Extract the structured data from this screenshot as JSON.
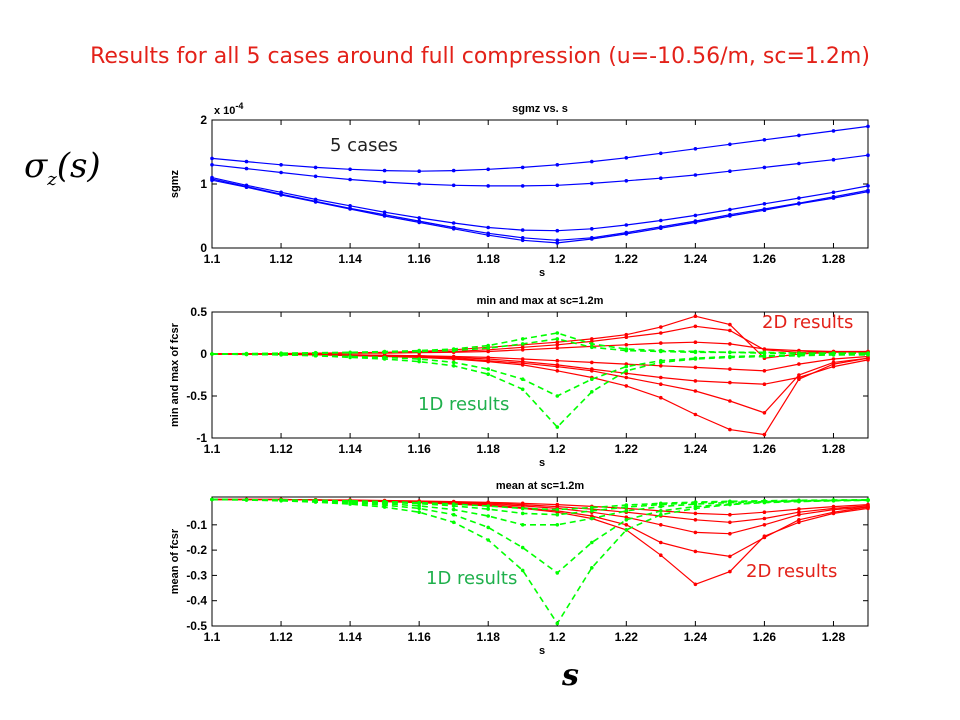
{
  "slide": {
    "title": "Results for all 5 cases around full compression (u=-10.56/m, sc=1.2m)",
    "sigma_symbol": "σ",
    "sigma_sub": "z",
    "sigma_arg": "(s)",
    "s_symbol": "s",
    "title_color": "#e32119"
  },
  "annotations": {
    "cases": "5 cases",
    "res2d_top": "2D results",
    "res1d_mid": "1D results",
    "res1d_bot": "1D results",
    "res2d_bot": "2D results",
    "color_2d": "#e32119",
    "color_1d": "#1fb04c"
  },
  "chart_data": [
    {
      "type": "line",
      "title": "sgmz vs. s",
      "xlabel": "s",
      "ylabel": "sgmz",
      "exponent_label": "x 10",
      "exponent_power": "-4",
      "xlim": [
        1.1,
        1.29
      ],
      "ylim": [
        0,
        2
      ],
      "xticks": [
        1.1,
        1.12,
        1.14,
        1.16,
        1.18,
        1.2,
        1.22,
        1.24,
        1.26,
        1.28
      ],
      "xtick_labels": [
        "1.1",
        "1.12",
        "1.14",
        "1.16",
        "1.18",
        "1.2",
        "1.22",
        "1.24",
        "1.26",
        "1.28"
      ],
      "yticks": [
        0,
        1,
        2
      ],
      "ytick_labels": [
        "0",
        "1",
        "2"
      ],
      "x": [
        1.1,
        1.11,
        1.12,
        1.13,
        1.14,
        1.15,
        1.16,
        1.17,
        1.18,
        1.19,
        1.2,
        1.21,
        1.22,
        1.23,
        1.24,
        1.25,
        1.26,
        1.27,
        1.28,
        1.29
      ],
      "series": [
        {
          "color": "#0000ff",
          "values": [
            1.4,
            1.35,
            1.3,
            1.26,
            1.23,
            1.21,
            1.2,
            1.21,
            1.23,
            1.26,
            1.3,
            1.35,
            1.41,
            1.48,
            1.55,
            1.62,
            1.69,
            1.76,
            1.83,
            1.9
          ]
        },
        {
          "color": "#0000ff",
          "values": [
            1.3,
            1.24,
            1.18,
            1.12,
            1.07,
            1.03,
            1.0,
            0.98,
            0.97,
            0.97,
            0.98,
            1.01,
            1.05,
            1.09,
            1.14,
            1.2,
            1.26,
            1.32,
            1.38,
            1.45
          ]
        },
        {
          "color": "#0000ff",
          "values": [
            1.1,
            0.98,
            0.87,
            0.76,
            0.66,
            0.56,
            0.47,
            0.39,
            0.32,
            0.28,
            0.27,
            0.3,
            0.36,
            0.43,
            0.51,
            0.6,
            0.69,
            0.78,
            0.87,
            0.97
          ]
        },
        {
          "color": "#0000ff",
          "values": [
            1.08,
            0.96,
            0.84,
            0.73,
            0.62,
            0.52,
            0.42,
            0.32,
            0.23,
            0.16,
            0.12,
            0.16,
            0.24,
            0.33,
            0.42,
            0.52,
            0.61,
            0.7,
            0.8,
            0.9
          ]
        },
        {
          "color": "#0000ff",
          "values": [
            1.06,
            0.95,
            0.83,
            0.72,
            0.61,
            0.5,
            0.4,
            0.3,
            0.2,
            0.12,
            0.08,
            0.14,
            0.22,
            0.31,
            0.4,
            0.5,
            0.59,
            0.69,
            0.78,
            0.88
          ]
        }
      ]
    },
    {
      "type": "line",
      "title": "min and max at sc=1.2m",
      "xlabel": "s",
      "ylabel": "min and max of  fcsr",
      "xlim": [
        1.1,
        1.29
      ],
      "ylim": [
        -1,
        0.5
      ],
      "xticks": [
        1.1,
        1.12,
        1.14,
        1.16,
        1.18,
        1.2,
        1.22,
        1.24,
        1.26,
        1.28
      ],
      "xtick_labels": [
        "1.1",
        "1.12",
        "1.14",
        "1.16",
        "1.18",
        "1.2",
        "1.22",
        "1.24",
        "1.26",
        "1.28"
      ],
      "yticks": [
        -1,
        -0.5,
        0,
        0.5
      ],
      "ytick_labels": [
        "-1",
        "-0.5",
        "0",
        "0.5"
      ],
      "x": [
        1.1,
        1.11,
        1.12,
        1.13,
        1.14,
        1.15,
        1.16,
        1.17,
        1.18,
        1.19,
        1.2,
        1.21,
        1.22,
        1.23,
        1.24,
        1.25,
        1.26,
        1.27,
        1.28,
        1.29
      ],
      "series": [
        {
          "color": "#ff0000",
          "style": "solid",
          "values": [
            0,
            0,
            0.005,
            0.01,
            0.015,
            0.02,
            0.03,
            0.05,
            0.08,
            0.11,
            0.14,
            0.18,
            0.23,
            0.32,
            0.45,
            0.35,
            -0.05,
            0,
            0.02,
            0.03
          ]
        },
        {
          "color": "#ff0000",
          "style": "solid",
          "values": [
            0,
            0,
            0.005,
            0.01,
            0.01,
            0.015,
            0.02,
            0.03,
            0.05,
            0.08,
            0.11,
            0.15,
            0.2,
            0.25,
            0.33,
            0.28,
            0.05,
            0.02,
            0.03,
            0.03
          ]
        },
        {
          "color": "#ff0000",
          "style": "solid",
          "values": [
            0,
            0,
            0,
            0.005,
            0.01,
            0.01,
            0.015,
            0.02,
            0.03,
            0.05,
            0.07,
            0.09,
            0.11,
            0.13,
            0.14,
            0.12,
            0.06,
            0.04,
            0.03,
            0.02
          ]
        },
        {
          "color": "#ff0000",
          "style": "solid",
          "values": [
            0,
            0,
            0,
            -0.005,
            -0.01,
            -0.015,
            -0.02,
            -0.03,
            -0.04,
            -0.06,
            -0.08,
            -0.1,
            -0.12,
            -0.14,
            -0.16,
            -0.18,
            -0.2,
            -0.12,
            -0.06,
            -0.03
          ]
        },
        {
          "color": "#ff0000",
          "style": "solid",
          "values": [
            0,
            0,
            0,
            -0.005,
            -0.01,
            -0.015,
            -0.02,
            -0.04,
            -0.06,
            -0.09,
            -0.13,
            -0.18,
            -0.23,
            -0.28,
            -0.32,
            -0.34,
            -0.36,
            -0.28,
            -0.15,
            -0.07
          ]
        },
        {
          "color": "#ff0000",
          "style": "solid",
          "values": [
            0,
            0,
            -0.005,
            -0.01,
            -0.015,
            -0.02,
            -0.03,
            -0.05,
            -0.08,
            -0.11,
            -0.15,
            -0.2,
            -0.28,
            -0.36,
            -0.44,
            -0.56,
            -0.7,
            -0.25,
            -0.1,
            -0.05
          ]
        },
        {
          "color": "#ff0000",
          "style": "solid",
          "values": [
            0,
            0,
            -0.005,
            -0.01,
            -0.02,
            -0.03,
            -0.04,
            -0.06,
            -0.09,
            -0.13,
            -0.2,
            -0.28,
            -0.38,
            -0.52,
            -0.72,
            -0.9,
            -0.96,
            -0.3,
            -0.12,
            -0.05
          ]
        },
        {
          "color": "#00ff00",
          "style": "dashed",
          "values": [
            0,
            0.005,
            0.01,
            0.015,
            0.02,
            0.03,
            0.04,
            0.06,
            0.1,
            0.18,
            0.25,
            0.12,
            0.06,
            0.04,
            0.03,
            0.02,
            0.02,
            0.01,
            0.01,
            0.01
          ]
        },
        {
          "color": "#00ff00",
          "style": "dashed",
          "values": [
            0,
            0,
            0.005,
            0.01,
            0.015,
            0.02,
            0.03,
            0.04,
            0.07,
            0.12,
            0.18,
            0.08,
            0.04,
            0.03,
            0.02,
            0.02,
            0.01,
            0.01,
            0.01,
            0.01
          ]
        },
        {
          "color": "#00ff00",
          "style": "dashed",
          "values": [
            0,
            -0.005,
            -0.01,
            -0.02,
            -0.03,
            -0.04,
            -0.06,
            -0.1,
            -0.18,
            -0.3,
            -0.5,
            -0.3,
            -0.15,
            -0.08,
            -0.05,
            -0.03,
            -0.02,
            -0.01,
            -0.01,
            -0.01
          ]
        },
        {
          "color": "#00ff00",
          "style": "dashed",
          "values": [
            0,
            -0.005,
            -0.01,
            -0.02,
            -0.04,
            -0.06,
            -0.09,
            -0.14,
            -0.24,
            -0.42,
            -0.87,
            -0.45,
            -0.2,
            -0.1,
            -0.06,
            -0.04,
            -0.03,
            -0.02,
            -0.01,
            -0.01
          ]
        }
      ]
    },
    {
      "type": "line",
      "title": "mean at sc=1.2m",
      "xlabel": "s",
      "ylabel": "mean of  fcsr",
      "xlim": [
        1.1,
        1.29
      ],
      "ylim": [
        -0.5,
        0.01
      ],
      "xticks": [
        1.1,
        1.12,
        1.14,
        1.16,
        1.18,
        1.2,
        1.22,
        1.24,
        1.26,
        1.28
      ],
      "xtick_labels": [
        "1.1",
        "1.12",
        "1.14",
        "1.16",
        "1.18",
        "1.2",
        "1.22",
        "1.24",
        "1.26",
        "1.28"
      ],
      "yticks": [
        -0.5,
        -0.4,
        -0.3,
        -0.2,
        -0.1
      ],
      "ytick_labels": [
        "-0.5",
        "-0.4",
        "-0.3",
        "-0.2",
        "-0.1"
      ],
      "x": [
        1.1,
        1.11,
        1.12,
        1.13,
        1.14,
        1.15,
        1.16,
        1.17,
        1.18,
        1.19,
        1.2,
        1.21,
        1.22,
        1.23,
        1.24,
        1.25,
        1.26,
        1.27,
        1.28,
        1.29
      ],
      "series": [
        {
          "color": "#ff0000",
          "style": "solid",
          "values": [
            0,
            0,
            0,
            -0.002,
            -0.005,
            -0.008,
            -0.012,
            -0.018,
            -0.025,
            -0.035,
            -0.05,
            -0.075,
            -0.12,
            -0.22,
            -0.335,
            -0.285,
            -0.145,
            -0.09,
            -0.055,
            -0.035
          ]
        },
        {
          "color": "#ff0000",
          "style": "solid",
          "values": [
            0,
            0,
            0,
            -0.002,
            -0.004,
            -0.007,
            -0.01,
            -0.015,
            -0.022,
            -0.032,
            -0.045,
            -0.065,
            -0.1,
            -0.17,
            -0.205,
            -0.225,
            -0.15,
            -0.08,
            -0.05,
            -0.03
          ]
        },
        {
          "color": "#ff0000",
          "style": "solid",
          "values": [
            0,
            0,
            0,
            -0.002,
            -0.004,
            -0.006,
            -0.009,
            -0.013,
            -0.018,
            -0.025,
            -0.035,
            -0.05,
            -0.07,
            -0.1,
            -0.13,
            -0.135,
            -0.1,
            -0.06,
            -0.04,
            -0.03
          ]
        },
        {
          "color": "#ff0000",
          "style": "solid",
          "values": [
            0,
            0,
            0,
            -0.001,
            -0.003,
            -0.005,
            -0.007,
            -0.01,
            -0.014,
            -0.02,
            -0.028,
            -0.038,
            -0.05,
            -0.065,
            -0.08,
            -0.09,
            -0.075,
            -0.05,
            -0.035,
            -0.025
          ]
        },
        {
          "color": "#ff0000",
          "style": "solid",
          "values": [
            0,
            0,
            0,
            -0.001,
            -0.002,
            -0.004,
            -0.006,
            -0.008,
            -0.011,
            -0.015,
            -0.02,
            -0.027,
            -0.035,
            -0.045,
            -0.055,
            -0.06,
            -0.05,
            -0.038,
            -0.028,
            -0.02
          ]
        },
        {
          "color": "#00ff00",
          "style": "dashed",
          "values": [
            0,
            -0.002,
            -0.005,
            -0.01,
            -0.018,
            -0.03,
            -0.05,
            -0.09,
            -0.16,
            -0.28,
            -0.49,
            -0.27,
            -0.12,
            -0.06,
            -0.035,
            -0.02,
            -0.012,
            -0.008,
            -0.005,
            -0.003
          ]
        },
        {
          "color": "#00ff00",
          "style": "dashed",
          "values": [
            0,
            -0.002,
            -0.004,
            -0.008,
            -0.014,
            -0.022,
            -0.035,
            -0.06,
            -0.11,
            -0.19,
            -0.29,
            -0.17,
            -0.08,
            -0.045,
            -0.028,
            -0.018,
            -0.01,
            -0.007,
            -0.004,
            -0.003
          ]
        },
        {
          "color": "#00ff00",
          "style": "dashed",
          "values": [
            0,
            -0.001,
            -0.003,
            -0.006,
            -0.01,
            -0.016,
            -0.025,
            -0.04,
            -0.065,
            -0.1,
            -0.1,
            -0.075,
            -0.045,
            -0.028,
            -0.018,
            -0.012,
            -0.008,
            -0.005,
            -0.003,
            -0.002
          ]
        },
        {
          "color": "#00ff00",
          "style": "dashed",
          "values": [
            0,
            -0.001,
            -0.002,
            -0.004,
            -0.007,
            -0.011,
            -0.016,
            -0.025,
            -0.038,
            -0.055,
            -0.06,
            -0.045,
            -0.03,
            -0.02,
            -0.013,
            -0.009,
            -0.006,
            -0.004,
            -0.003,
            -0.002
          ]
        },
        {
          "color": "#00ff00",
          "style": "dashed",
          "values": [
            0,
            -0.001,
            -0.002,
            -0.003,
            -0.005,
            -0.008,
            -0.012,
            -0.018,
            -0.026,
            -0.035,
            -0.04,
            -0.032,
            -0.022,
            -0.015,
            -0.01,
            -0.007,
            -0.005,
            -0.003,
            -0.002,
            -0.001
          ]
        }
      ]
    }
  ]
}
